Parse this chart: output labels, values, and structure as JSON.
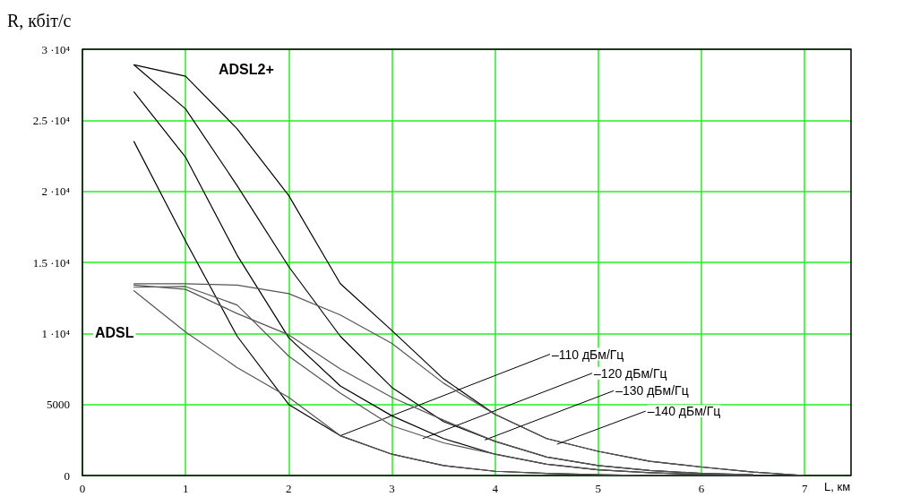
{
  "chart_data": {
    "type": "line",
    "ylabel": "R, кбіт/с",
    "xlabel": "L, км",
    "x": [
      0.5,
      1,
      1.5,
      2,
      2.5,
      3,
      3.5,
      4,
      4.5,
      5,
      5.5,
      6,
      6.5,
      7
    ],
    "series": [
      {
        "color": "#000000",
        "values": [
          28900,
          28100,
          24400,
          19700,
          13500,
          10200,
          6800,
          4300,
          2600,
          1700,
          1000,
          600,
          250,
          0
        ]
      },
      {
        "color": "#000000",
        "values": [
          28900,
          25800,
          20400,
          14700,
          9800,
          6200,
          3800,
          2400,
          1300,
          700,
          350,
          150,
          50,
          null
        ]
      },
      {
        "color": "#000000",
        "values": [
          27000,
          22400,
          15500,
          9700,
          6300,
          4200,
          2600,
          1500,
          800,
          400,
          200,
          80,
          20,
          0
        ]
      },
      {
        "color": "#000000",
        "values": [
          23500,
          16500,
          9800,
          5000,
          2800,
          1500,
          700,
          300,
          150,
          50,
          0,
          0,
          0,
          0
        ]
      },
      {
        "color": "#555555",
        "values": [
          13500,
          13500,
          13400,
          12800,
          11300,
          9300,
          6500,
          4300,
          2600,
          1700,
          1000,
          600,
          250,
          0
        ]
      },
      {
        "color": "#555555",
        "values": [
          13400,
          13100,
          11400,
          9900,
          7500,
          5500,
          3900,
          2400,
          1300,
          700,
          350,
          150,
          50,
          null
        ]
      },
      {
        "color": "#555555",
        "values": [
          13250,
          13300,
          12000,
          8400,
          5800,
          3500,
          2300,
          1500,
          800,
          400,
          200,
          80,
          20,
          null
        ]
      },
      {
        "color": "#555555",
        "values": [
          13000,
          10100,
          7600,
          5500,
          2800,
          1500,
          700,
          300,
          150,
          50,
          0,
          0,
          0,
          0
        ]
      }
    ],
    "xlim": [
      0,
      7.45
    ],
    "xticks": [
      0,
      1,
      2,
      3,
      4,
      5,
      6,
      7
    ],
    "ylim": [
      0,
      30000
    ],
    "yticks": [
      0,
      5000,
      {
        "value": 10000,
        "label": "1 ·10⁴"
      },
      {
        "value": 15000,
        "label": "1.5 ·10⁴"
      },
      {
        "value": 20000,
        "label": "2 ·10⁴"
      },
      {
        "value": 25000,
        "label": "2.5 ·10⁴"
      },
      {
        "value": 30000,
        "label": "3 ·10⁴"
      }
    ],
    "grid": true,
    "marker": "none",
    "line_style": "solid",
    "annotations": [
      "ADSL2+",
      "ADSL",
      {
        "text": "–110 дБм/Гц",
        "x": 2.5,
        "y": 2800
      },
      {
        "text": "–120 дБм/Гц",
        "x": 3.3,
        "y": 2600
      },
      {
        "text": "–130 дБм/Гц",
        "x": 3.9,
        "y": 2500
      },
      {
        "text": "–140 дБм/Гц",
        "x": 4.6,
        "y": 2200
      }
    ]
  }
}
